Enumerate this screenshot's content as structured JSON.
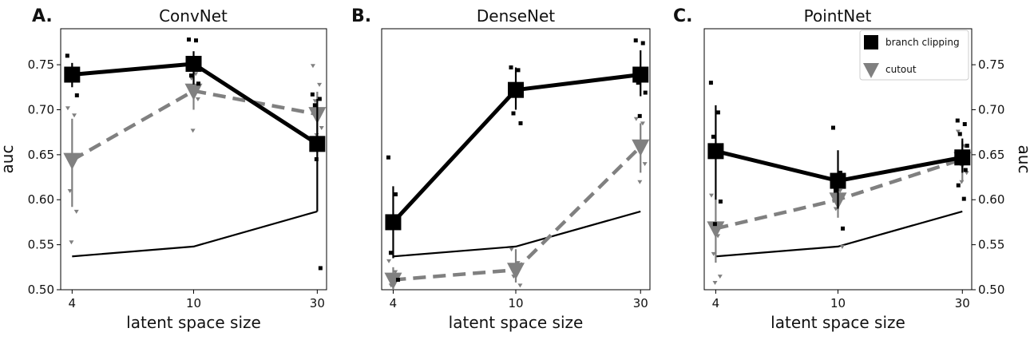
{
  "chart_data": [
    {
      "type": "line",
      "panel_letter": "A.",
      "title": "ConvNet",
      "xlabel": "latent space size",
      "ylabel": "auc",
      "x": [
        4,
        10,
        30
      ],
      "x_tick_labels": [
        "4",
        "10",
        "30"
      ],
      "ylim": [
        0.5,
        0.79
      ],
      "y_ticks": [
        0.5,
        0.55,
        0.6,
        0.65,
        0.7,
        0.75
      ],
      "y_tick_labels": [
        "0.50",
        "0.55",
        "0.60",
        "0.65",
        "0.70",
        "0.75"
      ],
      "y_axis_side": "left",
      "series": [
        {
          "name": "branch clipping",
          "style": "solid-thick-square",
          "color": "#000000",
          "values": [
            0.739,
            0.751,
            0.662
          ],
          "err_low": [
            0.725,
            0.728,
            0.587
          ],
          "err_high": [
            0.752,
            0.765,
            0.712
          ],
          "scatter": [
            [
              0.76,
              0.741,
              0.733,
              0.716
            ],
            [
              0.778,
              0.777,
              0.738,
              0.729
            ],
            [
              0.717,
              0.712,
              0.705,
              0.657,
              0.645,
              0.524
            ]
          ]
        },
        {
          "name": "cutout",
          "style": "dashed-thick-triangle",
          "color": "#808080",
          "values": [
            0.644,
            0.721,
            0.695
          ],
          "err_low": [
            0.592,
            0.7,
            0.67
          ],
          "err_high": [
            0.69,
            0.742,
            0.72
          ],
          "scatter": [
            [
              0.702,
              0.694,
              0.61,
              0.587,
              0.553
            ],
            [
              0.75,
              0.74,
              0.735,
              0.712,
              0.677
            ],
            [
              0.749,
              0.728,
              0.71,
              0.68,
              0.672
            ]
          ]
        },
        {
          "name": "",
          "style": "solid-thin",
          "color": "#000000",
          "values": [
            0.537,
            0.548,
            0.587
          ]
        }
      ]
    },
    {
      "type": "line",
      "panel_letter": "B.",
      "title": "DenseNet",
      "xlabel": "latent space size",
      "ylabel": "",
      "x": [
        4,
        10,
        30
      ],
      "x_tick_labels": [
        "4",
        "10",
        "30"
      ],
      "ylim": [
        0.5,
        0.79
      ],
      "y_ticks": [],
      "y_tick_labels": [],
      "y_axis_side": "none",
      "series": [
        {
          "name": "branch clipping",
          "style": "solid-thick-square",
          "color": "#000000",
          "values": [
            0.575,
            0.722,
            0.739
          ],
          "err_low": [
            0.535,
            0.7,
            0.715
          ],
          "err_high": [
            0.615,
            0.747,
            0.766
          ],
          "scatter": [
            [
              0.647,
              0.606,
              0.541,
              0.511
            ],
            [
              0.747,
              0.744,
              0.696,
              0.685
            ],
            [
              0.777,
              0.774,
              0.73,
              0.719,
              0.693
            ]
          ]
        },
        {
          "name": "cutout",
          "style": "dashed-thick-triangle",
          "color": "#808080",
          "values": [
            0.511,
            0.522,
            0.659
          ],
          "err_low": [
            0.5,
            0.508,
            0.63
          ],
          "err_high": [
            0.525,
            0.545,
            0.685
          ],
          "scatter": [
            [
              0.532,
              0.52,
              0.505
            ],
            [
              0.545,
              0.53,
              0.515,
              0.505
            ],
            [
              0.69,
              0.685,
              0.66,
              0.64,
              0.62
            ]
          ]
        },
        {
          "name": "",
          "style": "solid-thin",
          "color": "#000000",
          "values": [
            0.537,
            0.548,
            0.587
          ]
        }
      ]
    },
    {
      "type": "line",
      "panel_letter": "C.",
      "title": "PointNet",
      "xlabel": "latent space size",
      "ylabel": "auc",
      "x": [
        4,
        10,
        30
      ],
      "x_tick_labels": [
        "4",
        "10",
        "30"
      ],
      "ylim": [
        0.5,
        0.79
      ],
      "y_ticks": [
        0.5,
        0.55,
        0.6,
        0.65,
        0.7,
        0.75
      ],
      "y_tick_labels": [
        "0.50",
        "0.55",
        "0.60",
        "0.65",
        "0.70",
        "0.75"
      ],
      "y_axis_side": "right",
      "legend": {
        "placement": "top-right",
        "entries": [
          {
            "label": "branch clipping",
            "marker": "square",
            "color": "#000000"
          },
          {
            "label": "cutout",
            "marker": "triangle-down",
            "color": "#808080"
          }
        ]
      },
      "series": [
        {
          "name": "branch clipping",
          "style": "solid-thick-square",
          "color": "#000000",
          "values": [
            0.654,
            0.621,
            0.647
          ],
          "err_low": [
            0.6,
            0.59,
            0.63
          ],
          "err_high": [
            0.705,
            0.655,
            0.668
          ],
          "scatter": [
            [
              0.73,
              0.697,
              0.67,
              0.598,
              0.573
            ],
            [
              0.68,
              0.63,
              0.61,
              0.568
            ],
            [
              0.688,
              0.684,
              0.673,
              0.66,
              0.65,
              0.633,
              0.616,
              0.601
            ]
          ]
        },
        {
          "name": "cutout",
          "style": "dashed-thick-triangle",
          "color": "#808080",
          "values": [
            0.568,
            0.6,
            0.645
          ],
          "err_low": [
            0.53,
            0.58,
            0.62
          ],
          "err_high": [
            0.6,
            0.622,
            0.665
          ],
          "scatter": [
            [
              0.605,
              0.56,
              0.54,
              0.515,
              0.508
            ],
            [
              0.62,
              0.61,
              0.59,
              0.548
            ],
            [
              0.676,
              0.66,
              0.64,
              0.63,
              0.62
            ]
          ]
        },
        {
          "name": "",
          "style": "solid-thin",
          "color": "#000000",
          "values": [
            0.537,
            0.548,
            0.587
          ]
        }
      ]
    }
  ]
}
